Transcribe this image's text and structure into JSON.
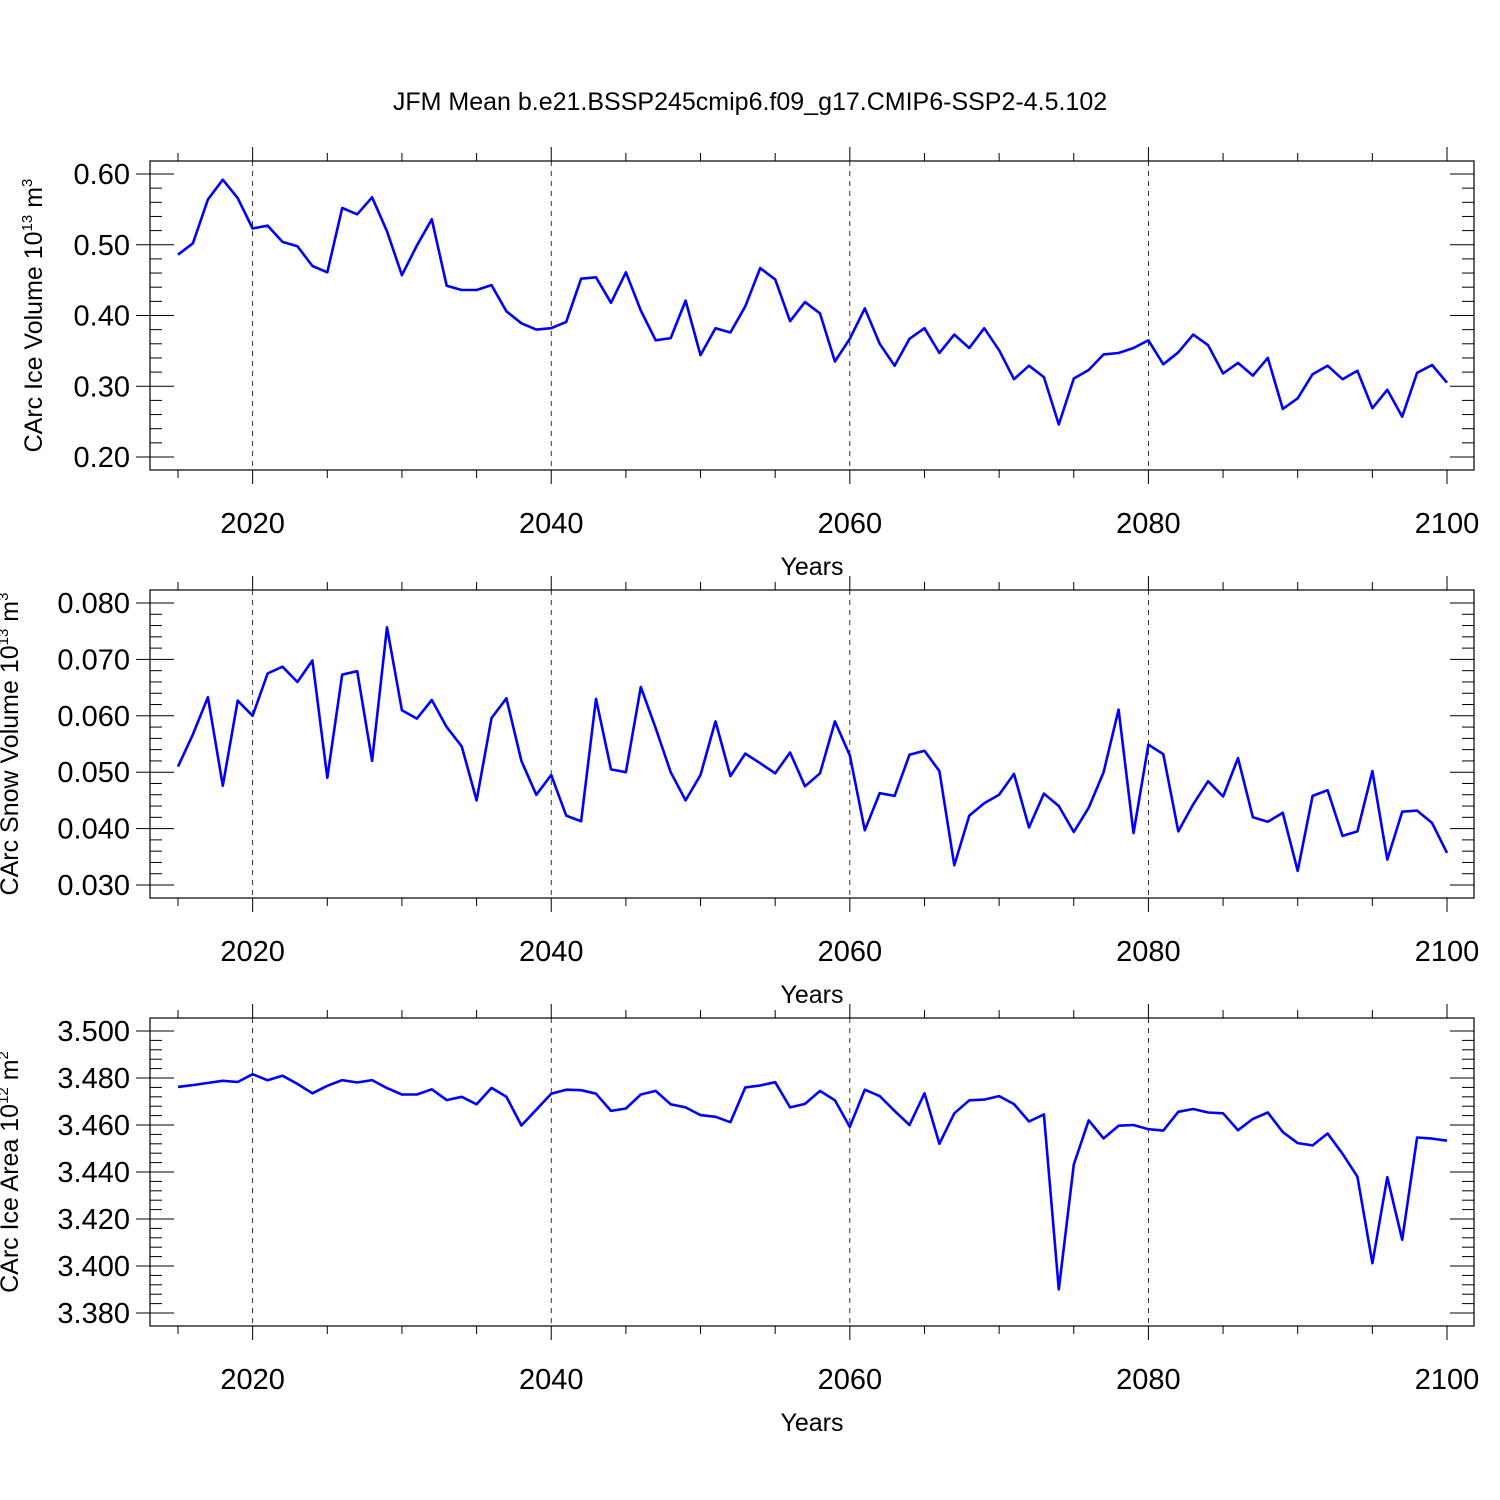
{
  "title": "JFM Mean b.e21.BSSP245cmip6.f09_g17.CMIP6-SSP2-4.5.102",
  "colors": {
    "series": "#0000ff",
    "axis": "#000000",
    "grid": "#000000"
  },
  "chart_data": [
    {
      "type": "line",
      "xlabel": "Years",
      "ylabel": "CArc Ice Volume 10",
      "ylabel_exp": "13",
      "ylabel_unit": " m",
      "ylabel_unit_exp": "3",
      "xlim": [
        2015,
        2100
      ],
      "ylim": [
        0.2,
        0.6
      ],
      "xticks": [
        2020,
        2040,
        2060,
        2080,
        2100
      ],
      "xtick_labels": [
        "2020",
        "2040",
        "2060",
        "2080",
        "2100"
      ],
      "yticks": [
        0.2,
        0.3,
        0.4,
        0.5,
        0.6
      ],
      "ytick_labels": [
        "0.20",
        "0.30",
        "0.40",
        "0.50",
        "0.60"
      ],
      "grid": "vertical dashed at major x ticks",
      "x": [
        2015,
        2016,
        2017,
        2018,
        2019,
        2020,
        2021,
        2022,
        2023,
        2024,
        2025,
        2026,
        2027,
        2028,
        2029,
        2030,
        2031,
        2032,
        2033,
        2034,
        2035,
        2036,
        2037,
        2038,
        2039,
        2040,
        2041,
        2042,
        2043,
        2044,
        2045,
        2046,
        2047,
        2048,
        2049,
        2050,
        2051,
        2052,
        2053,
        2054,
        2055,
        2056,
        2057,
        2058,
        2059,
        2060,
        2061,
        2062,
        2063,
        2064,
        2065,
        2066,
        2067,
        2068,
        2069,
        2070,
        2071,
        2072,
        2073,
        2074,
        2075,
        2076,
        2077,
        2078,
        2079,
        2080,
        2081,
        2082,
        2083,
        2084,
        2085,
        2086,
        2087,
        2088,
        2089,
        2090,
        2091,
        2092,
        2093,
        2094,
        2095,
        2096,
        2097,
        2098,
        2099,
        2100
      ],
      "values": [
        0.486,
        0.502,
        0.564,
        0.592,
        0.566,
        0.523,
        0.527,
        0.504,
        0.498,
        0.47,
        0.461,
        0.552,
        0.543,
        0.567,
        0.519,
        0.457,
        0.499,
        0.536,
        0.442,
        0.436,
        0.436,
        0.443,
        0.406,
        0.389,
        0.38,
        0.382,
        0.391,
        0.452,
        0.454,
        0.418,
        0.461,
        0.407,
        0.365,
        0.368,
        0.421,
        0.344,
        0.382,
        0.376,
        0.413,
        0.467,
        0.451,
        0.392,
        0.419,
        0.403,
        0.335,
        0.367,
        0.41,
        0.36,
        0.329,
        0.367,
        0.382,
        0.347,
        0.373,
        0.354,
        0.382,
        0.351,
        0.31,
        0.329,
        0.313,
        0.246,
        0.311,
        0.323,
        0.345,
        0.347,
        0.354,
        0.365,
        0.331,
        0.348,
        0.373,
        0.358,
        0.318,
        0.333,
        0.315,
        0.34,
        0.268,
        0.283,
        0.317,
        0.329,
        0.31,
        0.322,
        0.269,
        0.295,
        0.257,
        0.319,
        0.33,
        0.305
      ]
    },
    {
      "type": "line",
      "xlabel": "Years",
      "ylabel": "CArc Snow Volume 10",
      "ylabel_exp": "13",
      "ylabel_unit": " m",
      "ylabel_unit_exp": "3",
      "xlim": [
        2015,
        2100
      ],
      "ylim": [
        0.03,
        0.08
      ],
      "xticks": [
        2020,
        2040,
        2060,
        2080,
        2100
      ],
      "xtick_labels": [
        "2020",
        "2040",
        "2060",
        "2080",
        "2100"
      ],
      "yticks": [
        0.03,
        0.04,
        0.05,
        0.06,
        0.07,
        0.08
      ],
      "ytick_labels": [
        "0.030",
        "0.040",
        "0.050",
        "0.060",
        "0.070",
        "0.080"
      ],
      "grid": "vertical dashed at major x ticks",
      "x": [
        2015,
        2016,
        2017,
        2018,
        2019,
        2020,
        2021,
        2022,
        2023,
        2024,
        2025,
        2026,
        2027,
        2028,
        2029,
        2030,
        2031,
        2032,
        2033,
        2034,
        2035,
        2036,
        2037,
        2038,
        2039,
        2040,
        2041,
        2042,
        2043,
        2044,
        2045,
        2046,
        2047,
        2048,
        2049,
        2050,
        2051,
        2052,
        2053,
        2054,
        2055,
        2056,
        2057,
        2058,
        2059,
        2060,
        2061,
        2062,
        2063,
        2064,
        2065,
        2066,
        2067,
        2068,
        2069,
        2070,
        2071,
        2072,
        2073,
        2074,
        2075,
        2076,
        2077,
        2078,
        2079,
        2080,
        2081,
        2082,
        2083,
        2084,
        2085,
        2086,
        2087,
        2088,
        2089,
        2090,
        2091,
        2092,
        2093,
        2094,
        2095,
        2096,
        2097,
        2098,
        2099,
        2100
      ],
      "values": [
        0.051,
        0.0567,
        0.0633,
        0.0476,
        0.0627,
        0.06,
        0.0675,
        0.0687,
        0.066,
        0.0698,
        0.049,
        0.0673,
        0.0679,
        0.052,
        0.0757,
        0.061,
        0.0595,
        0.0628,
        0.058,
        0.0546,
        0.045,
        0.0596,
        0.0631,
        0.052,
        0.046,
        0.0495,
        0.0423,
        0.0413,
        0.063,
        0.0505,
        0.05,
        0.0651,
        0.0578,
        0.05,
        0.045,
        0.0495,
        0.059,
        0.0493,
        0.0533,
        0.0516,
        0.0498,
        0.0535,
        0.0475,
        0.0498,
        0.059,
        0.053,
        0.0397,
        0.0463,
        0.0458,
        0.0531,
        0.0538,
        0.0502,
        0.0335,
        0.0423,
        0.0445,
        0.046,
        0.0497,
        0.0402,
        0.0462,
        0.044,
        0.0394,
        0.0437,
        0.05,
        0.0611,
        0.0392,
        0.0549,
        0.0532,
        0.0395,
        0.0443,
        0.0484,
        0.0457,
        0.0525,
        0.042,
        0.0412,
        0.0428,
        0.0325,
        0.0458,
        0.0468,
        0.0387,
        0.0395,
        0.0502,
        0.0345,
        0.043,
        0.0432,
        0.041,
        0.0357
      ]
    },
    {
      "type": "line",
      "xlabel": "Years",
      "ylabel": "CArc Ice Area 10",
      "ylabel_exp": "12",
      "ylabel_unit": " m",
      "ylabel_unit_exp": "2",
      "xlim": [
        2015,
        2100
      ],
      "ylim": [
        3.38,
        3.5
      ],
      "xticks": [
        2020,
        2040,
        2060,
        2080,
        2100
      ],
      "xtick_labels": [
        "2020",
        "2040",
        "2060",
        "2080",
        "2100"
      ],
      "yticks": [
        3.38,
        3.4,
        3.42,
        3.44,
        3.46,
        3.48,
        3.5
      ],
      "ytick_labels": [
        "3.380",
        "3.400",
        "3.420",
        "3.440",
        "3.460",
        "3.480",
        "3.500"
      ],
      "grid": "vertical dashed at major x ticks",
      "x": [
        2015,
        2016,
        2017,
        2018,
        2019,
        2020,
        2021,
        2022,
        2023,
        2024,
        2025,
        2026,
        2027,
        2028,
        2029,
        2030,
        2031,
        2032,
        2033,
        2034,
        2035,
        2036,
        2037,
        2038,
        2039,
        2040,
        2041,
        2042,
        2043,
        2044,
        2045,
        2046,
        2047,
        2048,
        2049,
        2050,
        2051,
        2052,
        2053,
        2054,
        2055,
        2056,
        2057,
        2058,
        2059,
        2060,
        2061,
        2062,
        2063,
        2064,
        2065,
        2066,
        2067,
        2068,
        2069,
        2070,
        2071,
        2072,
        2073,
        2074,
        2075,
        2076,
        2077,
        2078,
        2079,
        2080,
        2081,
        2082,
        2083,
        2084,
        2085,
        2086,
        2087,
        2088,
        2089,
        2090,
        2091,
        2092,
        2093,
        2094,
        2095,
        2096,
        2097,
        2098,
        2099,
        2100
      ],
      "values": [
        3.4762,
        3.477,
        3.4779,
        3.4788,
        3.4783,
        3.4816,
        3.479,
        3.481,
        3.4775,
        3.4735,
        3.4767,
        3.4791,
        3.4781,
        3.4791,
        3.4757,
        3.473,
        3.473,
        3.4752,
        3.4706,
        3.472,
        3.4688,
        3.4758,
        3.472,
        3.4598,
        3.4665,
        3.4733,
        3.475,
        3.4748,
        3.4733,
        3.466,
        3.467,
        3.473,
        3.4745,
        3.4688,
        3.4675,
        3.4642,
        3.4635,
        3.4612,
        3.476,
        3.4768,
        3.4782,
        3.4675,
        3.469,
        3.4745,
        3.4705,
        3.4592,
        3.475,
        3.4723,
        3.466,
        3.46,
        3.4735,
        3.452,
        3.465,
        3.4705,
        3.4708,
        3.4723,
        3.4689,
        3.4615,
        3.4645,
        3.39,
        3.4432,
        3.462,
        3.4543,
        3.4597,
        3.46,
        3.4582,
        3.4576,
        3.4656,
        3.4668,
        3.4653,
        3.465,
        3.4578,
        3.4626,
        3.4653,
        3.457,
        3.4523,
        3.4513,
        3.4564,
        3.4478,
        3.438,
        3.4012,
        3.4378,
        3.4112,
        3.4547,
        3.4542,
        3.4533
      ]
    }
  ]
}
